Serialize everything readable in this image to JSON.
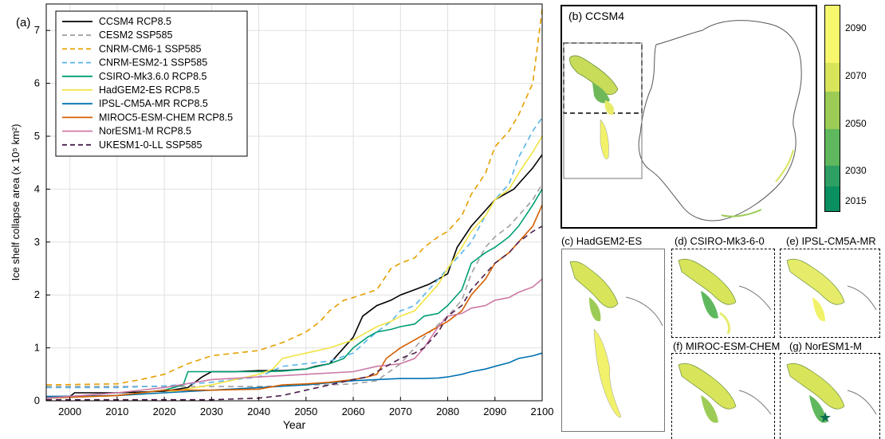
{
  "chart_data": [
    {
      "type": "line",
      "panel_label": "(a)",
      "xlabel": "Year",
      "ylabel": "Ice shelf collapse area (x 10⁵ km²)",
      "xlim": [
        1995,
        2100
      ],
      "ylim": [
        0,
        7.5
      ],
      "xticks": [
        2000,
        2010,
        2020,
        2030,
        2040,
        2050,
        2060,
        2070,
        2080,
        2090,
        2100
      ],
      "yticks": [
        0,
        1,
        2,
        3,
        4,
        5,
        6,
        7
      ],
      "grid": true,
      "legend_position": "top-left",
      "series": [
        {
          "name": "CCSM4 RCP8.5",
          "color": "#000000",
          "dash": "solid",
          "x": [
            1995,
            2000,
            2001,
            2010,
            2020,
            2025,
            2028,
            2030,
            2035,
            2040,
            2045,
            2050,
            2052,
            2055,
            2057,
            2060,
            2062,
            2065,
            2068,
            2070,
            2073,
            2076,
            2078,
            2080,
            2082,
            2085,
            2088,
            2090,
            2092,
            2094,
            2096,
            2098,
            2100
          ],
          "y": [
            0.08,
            0.08,
            0.15,
            0.15,
            0.18,
            0.25,
            0.45,
            0.55,
            0.55,
            0.57,
            0.57,
            0.6,
            0.65,
            0.7,
            0.9,
            1.2,
            1.6,
            1.8,
            1.9,
            2.0,
            2.1,
            2.2,
            2.3,
            2.4,
            2.9,
            3.3,
            3.6,
            3.8,
            3.9,
            4.0,
            4.2,
            4.4,
            4.65
          ]
        },
        {
          "name": "CESM2 SSP585",
          "color": "#a0a0a0",
          "dash": "dashed",
          "x": [
            1995,
            2010,
            2020,
            2030,
            2040,
            2045,
            2050,
            2055,
            2060,
            2065,
            2070,
            2075,
            2080,
            2083,
            2085,
            2088,
            2090,
            2093,
            2095,
            2098,
            2100
          ],
          "y": [
            0.27,
            0.27,
            0.27,
            0.27,
            0.27,
            0.28,
            0.3,
            0.3,
            0.32,
            0.38,
            0.7,
            1.2,
            1.6,
            1.9,
            2.4,
            2.9,
            3.1,
            3.3,
            3.5,
            3.8,
            4.1
          ]
        },
        {
          "name": "CNRM-CM6-1 SSP585",
          "color": "#e69f00",
          "dash": "dashed",
          "x": [
            1995,
            2010,
            2015,
            2020,
            2025,
            2030,
            2035,
            2040,
            2045,
            2050,
            2053,
            2055,
            2058,
            2060,
            2065,
            2068,
            2070,
            2073,
            2075,
            2078,
            2080,
            2083,
            2085,
            2088,
            2090,
            2093,
            2095,
            2098,
            2100
          ],
          "y": [
            0.3,
            0.32,
            0.4,
            0.5,
            0.7,
            0.85,
            0.9,
            0.95,
            1.1,
            1.3,
            1.5,
            1.7,
            1.9,
            1.95,
            2.1,
            2.5,
            2.6,
            2.7,
            2.9,
            3.1,
            3.2,
            3.5,
            3.9,
            4.3,
            4.8,
            5.1,
            5.4,
            6.0,
            7.4
          ]
        },
        {
          "name": "CNRM-ESM2-1 SSP585",
          "color": "#56b4e9",
          "dash": "dashed",
          "x": [
            1995,
            2010,
            2020,
            2030,
            2040,
            2045,
            2050,
            2055,
            2060,
            2063,
            2065,
            2068,
            2070,
            2073,
            2075,
            2078,
            2080,
            2083,
            2085,
            2088,
            2090,
            2093,
            2095,
            2098,
            2100
          ],
          "y": [
            0.25,
            0.25,
            0.28,
            0.35,
            0.45,
            0.65,
            0.7,
            0.75,
            0.9,
            1.15,
            1.3,
            1.5,
            1.7,
            1.8,
            2.0,
            2.3,
            2.5,
            2.8,
            3.0,
            3.5,
            3.8,
            4.1,
            4.6,
            5.1,
            5.35
          ]
        },
        {
          "name": "CSIRO-Mk3.6.0 RCP8.5",
          "color": "#009e73",
          "dash": "solid",
          "x": [
            1995,
            2010,
            2020,
            2024,
            2025,
            2030,
            2040,
            2045,
            2050,
            2055,
            2058,
            2060,
            2063,
            2065,
            2068,
            2070,
            2073,
            2075,
            2078,
            2080,
            2083,
            2085,
            2088,
            2090,
            2093,
            2095,
            2098,
            2100
          ],
          "y": [
            0.05,
            0.1,
            0.2,
            0.3,
            0.55,
            0.55,
            0.55,
            0.56,
            0.6,
            0.7,
            0.8,
            1.0,
            1.2,
            1.3,
            1.35,
            1.4,
            1.45,
            1.6,
            1.65,
            1.8,
            2.1,
            2.6,
            2.8,
            2.9,
            3.1,
            3.3,
            3.7,
            4.0
          ]
        },
        {
          "name": "HadGEM2-ES RCP8.5",
          "color": "#f0e442",
          "dash": "solid",
          "x": [
            1995,
            2010,
            2020,
            2030,
            2040,
            2043,
            2045,
            2050,
            2055,
            2060,
            2063,
            2065,
            2068,
            2070,
            2073,
            2075,
            2078,
            2080,
            2083,
            2085,
            2088,
            2090,
            2093,
            2095,
            2098,
            2100
          ],
          "y": [
            0.05,
            0.1,
            0.15,
            0.3,
            0.5,
            0.6,
            0.8,
            0.9,
            1.0,
            1.15,
            1.3,
            1.4,
            1.5,
            1.6,
            1.7,
            1.9,
            2.2,
            2.5,
            2.9,
            3.2,
            3.5,
            3.8,
            4.0,
            4.3,
            4.7,
            5.0
          ]
        },
        {
          "name": "IPSL-CM5A-MR RCP8.5",
          "color": "#0072b2",
          "dash": "solid",
          "x": [
            1995,
            2010,
            2020,
            2040,
            2050,
            2060,
            2065,
            2070,
            2075,
            2078,
            2080,
            2083,
            2085,
            2088,
            2090,
            2093,
            2095,
            2098,
            2100
          ],
          "y": [
            0.08,
            0.1,
            0.15,
            0.25,
            0.3,
            0.38,
            0.4,
            0.42,
            0.42,
            0.43,
            0.45,
            0.5,
            0.55,
            0.6,
            0.65,
            0.72,
            0.8,
            0.85,
            0.9
          ]
        },
        {
          "name": "MIROC5-ESM-CHEM RCP8.5",
          "color": "#d55e00",
          "dash": "solid",
          "x": [
            1995,
            2010,
            2020,
            2030,
            2040,
            2045,
            2050,
            2055,
            2060,
            2063,
            2065,
            2067,
            2070,
            2073,
            2075,
            2078,
            2080,
            2083,
            2085,
            2088,
            2090,
            2093,
            2095,
            2098,
            2100
          ],
          "y": [
            0.05,
            0.1,
            0.2,
            0.2,
            0.22,
            0.3,
            0.32,
            0.35,
            0.4,
            0.45,
            0.5,
            0.8,
            1.0,
            1.15,
            1.25,
            1.4,
            1.5,
            1.7,
            2.0,
            2.3,
            2.6,
            2.8,
            3.0,
            3.3,
            3.7
          ]
        },
        {
          "name": "NorESM1-M RCP8.5",
          "color": "#cc79a7",
          "dash": "solid",
          "x": [
            1995,
            2010,
            2020,
            2030,
            2040,
            2050,
            2060,
            2065,
            2070,
            2073,
            2075,
            2078,
            2080,
            2083,
            2085,
            2088,
            2090,
            2093,
            2095,
            2098,
            2100
          ],
          "y": [
            0.05,
            0.15,
            0.25,
            0.4,
            0.45,
            0.5,
            0.55,
            0.65,
            0.7,
            0.8,
            1.0,
            1.4,
            1.6,
            1.65,
            1.75,
            1.8,
            1.9,
            1.95,
            2.05,
            2.15,
            2.3
          ]
        },
        {
          "name": "UKESM1-0-LL SSP585",
          "color": "#4b1f4b",
          "dash": "dashed",
          "x": [
            1995,
            2010,
            2020,
            2030,
            2040,
            2045,
            2050,
            2055,
            2060,
            2063,
            2065,
            2068,
            2070,
            2073,
            2075,
            2078,
            2080,
            2083,
            2085,
            2088,
            2090,
            2093,
            2095,
            2098,
            2100
          ],
          "y": [
            0.02,
            0.02,
            0.02,
            0.02,
            0.05,
            0.1,
            0.2,
            0.3,
            0.4,
            0.45,
            0.55,
            0.7,
            0.8,
            0.9,
            1.0,
            1.3,
            1.6,
            1.8,
            2.1,
            2.4,
            2.6,
            2.8,
            3.0,
            3.2,
            3.3
          ]
        }
      ]
    },
    {
      "type": "heatmap",
      "panel_label": "(b) CCSM4",
      "colorbar_ticks": [
        "2015",
        "2030",
        "2050",
        "2070",
        "2090"
      ],
      "colorbar_colors": [
        "#0a8f60",
        "#2e9f63",
        "#5fb85e",
        "#9ccc55",
        "#d8e45a",
        "#f7f76e"
      ]
    },
    {
      "type": "heatmap",
      "panel_label": "(c) HadGEM2-ES"
    },
    {
      "type": "heatmap",
      "panel_label": "(d) CSIRO-Mk3-6-0"
    },
    {
      "type": "heatmap",
      "panel_label": "(e) IPSL-CM5A-MR"
    },
    {
      "type": "heatmap",
      "panel_label": "(f) MIROC-ESM-CHEM"
    },
    {
      "type": "heatmap",
      "panel_label": "(g) NorESM1-M"
    }
  ],
  "maps": {
    "b_label": "(b) CCSM4",
    "c_label": "(c) HadGEM2-ES",
    "d_label": "(d) CSIRO-Mk3-6-0",
    "e_label": "(e) IPSL-CM5A-MR",
    "f_label": "(f) MIROC-ESM-CHEM",
    "g_label": "(g) NorESM1-M"
  }
}
